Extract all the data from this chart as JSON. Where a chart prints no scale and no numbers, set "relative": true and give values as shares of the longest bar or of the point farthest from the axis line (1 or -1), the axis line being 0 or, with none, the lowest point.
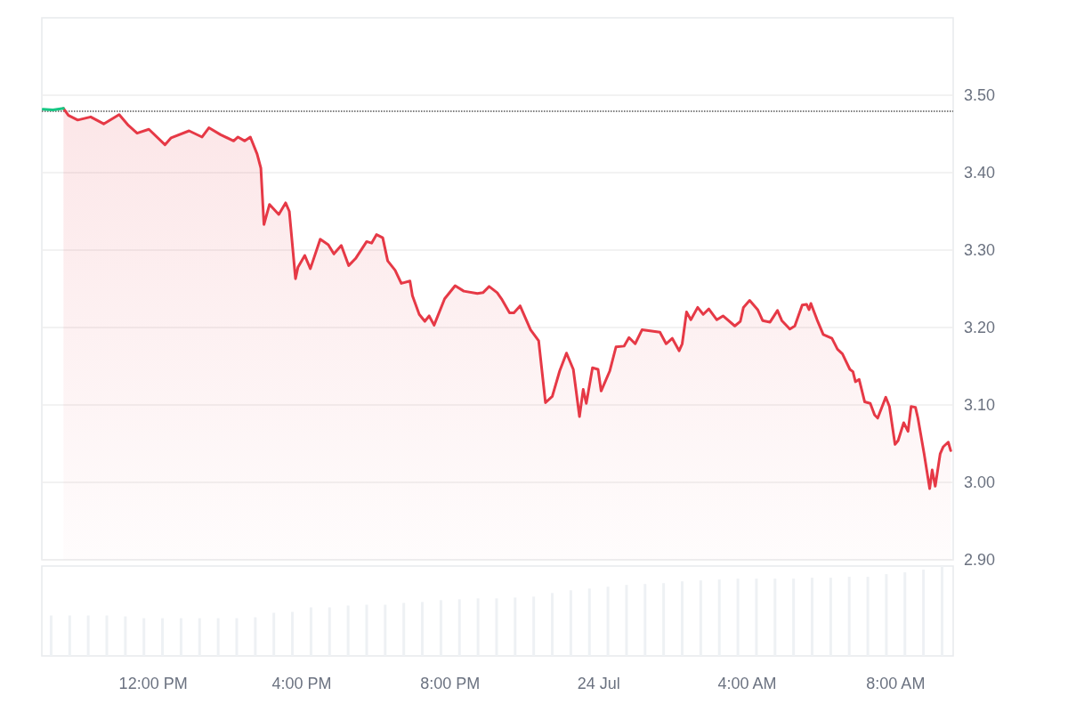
{
  "chart_data": [
    {
      "type": "line",
      "xlim": [
        "--07-23T09:00",
        "--07-24T09:33"
      ],
      "ylim": [
        2.9,
        3.6
      ],
      "yticks": [
        {
          "value": 2.9,
          "label": "2.90"
        },
        {
          "value": 3.0,
          "label": "3.00"
        },
        {
          "value": 3.1,
          "label": "3.10"
        },
        {
          "value": 3.2,
          "label": "3.20"
        },
        {
          "value": 3.3,
          "label": "3.30"
        },
        {
          "value": 3.4,
          "label": "3.40"
        },
        {
          "value": 3.5,
          "label": "3.50"
        }
      ],
      "tick_labels": "y",
      "grid": "y",
      "marker": "none",
      "line_style": "solid",
      "ref_lines": [
        {
          "axis": "y",
          "value": 3.48,
          "color": "#555555",
          "line_style": "dotted"
        }
      ],
      "series": [
        {
          "type": "area",
          "color": "#e63946",
          "x": [
            "--07-23T09:35",
            "--07-23T09:43",
            "--07-23T09:58",
            "--07-23T10:19",
            "--07-23T10:40",
            "--07-23T11:05",
            "--07-23T11:20",
            "--07-23T11:34",
            "--07-23T11:53",
            "--07-23T12:19",
            "--07-23T12:29",
            "--07-23T12:58",
            "--07-23T13:19",
            "--07-23T13:30",
            "--07-23T13:49",
            "--07-23T14:10",
            "--07-23T14:17",
            "--07-23T14:28",
            "--07-23T14:37",
            "--07-23T14:48",
            "--07-23T14:54",
            "--07-23T14:59",
            "--07-23T15:08",
            "--07-23T15:23",
            "--07-23T15:34",
            "--07-23T15:40",
            "--07-23T15:50",
            "--07-23T15:54",
            "--07-23T16:05",
            "--07-23T16:14",
            "--07-23T16:30",
            "--07-23T16:43",
            "--07-23T16:52",
            "--07-23T17:04",
            "--07-23T17:16",
            "--07-23T17:27",
            "--07-23T17:45",
            "--07-23T17:53",
            "--07-23T18:01",
            "--07-23T18:11",
            "--07-23T18:19",
            "--07-23T18:31",
            "--07-23T18:41",
            "--07-23T18:55",
            "--07-23T18:59",
            "--07-23T19:10",
            "--07-23T19:19",
            "--07-23T19:26",
            "--07-23T19:34",
            "--07-23T19:51",
            "--07-23T20:08",
            "--07-23T20:22",
            "--07-23T20:44",
            "--07-23T20:53",
            "--07-23T21:03",
            "--07-23T21:16",
            "--07-23T21:23",
            "--07-23T21:36",
            "--07-23T21:43",
            "--07-23T21:53",
            "--07-23T22:10",
            "--07-23T22:23",
            "--07-23T22:34",
            "--07-23T22:45",
            "--07-23T22:57",
            "--07-23T23:08",
            "--07-23T23:19",
            "--07-23T23:29",
            "--07-23T23:35",
            "--07-23T23:40",
            "--07-23T23:50",
            "--07-23T23:59",
            "--07-24T00:04",
            "--07-24T00:18",
            "--07-24T00:28",
            "--07-24T00:41",
            "--07-24T00:49",
            "--07-24T00:59",
            "--07-24T01:10",
            "--07-24T01:39",
            "--07-24T01:49",
            "--07-24T01:59",
            "--07-24T02:10",
            "--07-24T02:15",
            "--07-24T02:22",
            "--07-24T02:29",
            "--07-24T02:40",
            "--07-24T02:49",
            "--07-24T02:58",
            "--07-24T03:11",
            "--07-24T03:21",
            "--07-24T03:40",
            "--07-24T03:49",
            "--07-24T03:54",
            "--07-24T04:04",
            "--07-24T04:17",
            "--07-24T04:25",
            "--07-24T04:37",
            "--07-24T04:49",
            "--07-24T04:56",
            "--07-24T05:09",
            "--07-24T05:17",
            "--07-24T05:29",
            "--07-24T05:36",
            "--07-24T05:40",
            "--07-24T05:43",
            "--07-24T05:53",
            "--07-24T06:03",
            "--07-24T06:17",
            "--07-24T06:26",
            "--07-24T06:34",
            "--07-24T06:46",
            "--07-24T06:51",
            "--07-24T06:55",
            "--07-24T07:01",
            "--07-24T07:10",
            "--07-24T07:19",
            "--07-24T07:26",
            "--07-24T07:31",
            "--07-24T07:44",
            "--07-24T07:50",
            "--07-24T07:59",
            "--07-24T08:04",
            "--07-24T08:13",
            "--07-24T08:20",
            "--07-24T08:25",
            "--07-24T08:32",
            "--07-24T08:36",
            "--07-24T08:46",
            "--07-24T08:55",
            "--07-24T08:59",
            "--07-24T09:04",
            "--07-24T09:12",
            "--07-24T09:17",
            "--07-24T09:25",
            "--07-24T09:29"
          ],
          "values": [
            3.483,
            3.474,
            3.468,
            3.472,
            3.463,
            3.475,
            3.461,
            3.451,
            3.456,
            3.436,
            3.445,
            3.454,
            3.446,
            3.458,
            3.449,
            3.441,
            3.446,
            3.441,
            3.446,
            3.424,
            3.406,
            3.333,
            3.359,
            3.346,
            3.361,
            3.35,
            3.263,
            3.278,
            3.293,
            3.276,
            3.314,
            3.307,
            3.295,
            3.306,
            3.28,
            3.289,
            3.311,
            3.309,
            3.32,
            3.316,
            3.286,
            3.274,
            3.257,
            3.26,
            3.241,
            3.217,
            3.208,
            3.215,
            3.203,
            3.237,
            3.254,
            3.247,
            3.244,
            3.245,
            3.253,
            3.245,
            3.237,
            3.219,
            3.219,
            3.228,
            3.197,
            3.183,
            3.103,
            3.111,
            3.144,
            3.167,
            3.146,
            3.085,
            3.12,
            3.102,
            3.148,
            3.146,
            3.118,
            3.144,
            3.175,
            3.176,
            3.187,
            3.179,
            3.197,
            3.194,
            3.179,
            3.186,
            3.17,
            3.179,
            3.22,
            3.21,
            3.226,
            3.217,
            3.224,
            3.21,
            3.215,
            3.202,
            3.208,
            3.226,
            3.235,
            3.223,
            3.209,
            3.207,
            3.222,
            3.209,
            3.198,
            3.202,
            3.229,
            3.23,
            3.223,
            3.231,
            3.21,
            3.191,
            3.186,
            3.172,
            3.166,
            3.146,
            3.143,
            3.13,
            3.133,
            3.104,
            3.102,
            3.087,
            3.083,
            3.11,
            3.098,
            3.049,
            3.054,
            3.077,
            3.066,
            3.098,
            3.097,
            3.083,
            3.037,
            2.992,
            3.016,
            2.995,
            3.037,
            3.046,
            3.052,
            3.041
          ]
        },
        {
          "color": "#16c784",
          "x": [
            "--07-23T09:02",
            "--07-23T09:18",
            "--07-23T09:35"
          ],
          "values": [
            3.482,
            3.481,
            3.483
          ]
        }
      ]
    },
    {
      "type": "bar",
      "relative": true,
      "color": "#eef1f4",
      "tick_labels": "x",
      "xlim": [
        "--07-23T09:00",
        "--07-24T09:33"
      ],
      "xticks": [
        {
          "value": "--07-23T12:00",
          "label": "12:00 PM"
        },
        {
          "value": "--07-23T16:00",
          "label": "4:00 PM"
        },
        {
          "value": "--07-23T20:00",
          "label": "8:00 PM"
        },
        {
          "value": "--07-24T00:00",
          "label": "24 Jul"
        },
        {
          "value": "--07-24T04:00",
          "label": "4:00 AM"
        },
        {
          "value": "--07-24T08:00",
          "label": "8:00 AM"
        }
      ],
      "x": [
        "--07-23T09:15",
        "--07-23T09:45",
        "--07-23T10:15",
        "--07-23T10:45",
        "--07-23T11:15",
        "--07-23T11:45",
        "--07-23T12:15",
        "--07-23T12:45",
        "--07-23T13:15",
        "--07-23T13:45",
        "--07-23T14:15",
        "--07-23T14:45",
        "--07-23T15:15",
        "--07-23T15:45",
        "--07-23T16:15",
        "--07-23T16:45",
        "--07-23T17:15",
        "--07-23T17:45",
        "--07-23T18:15",
        "--07-23T18:45",
        "--07-23T19:15",
        "--07-23T19:45",
        "--07-23T20:15",
        "--07-23T20:45",
        "--07-23T21:15",
        "--07-23T21:45",
        "--07-23T22:15",
        "--07-23T22:45",
        "--07-23T23:15",
        "--07-23T23:45",
        "--07-24T00:15",
        "--07-24T00:45",
        "--07-24T01:15",
        "--07-24T01:45",
        "--07-24T02:15",
        "--07-24T02:45",
        "--07-24T03:15",
        "--07-24T03:45",
        "--07-24T04:15",
        "--07-24T04:45",
        "--07-24T05:15",
        "--07-24T05:45",
        "--07-24T06:15",
        "--07-24T06:45",
        "--07-24T07:15",
        "--07-24T07:45",
        "--07-24T08:15",
        "--07-24T08:45",
        "--07-24T09:15"
      ],
      "values": [
        0.45,
        0.45,
        0.45,
        0.45,
        0.44,
        0.42,
        0.42,
        0.42,
        0.42,
        0.42,
        0.42,
        0.43,
        0.48,
        0.49,
        0.54,
        0.54,
        0.56,
        0.57,
        0.57,
        0.59,
        0.6,
        0.62,
        0.63,
        0.64,
        0.64,
        0.65,
        0.66,
        0.7,
        0.73,
        0.75,
        0.77,
        0.79,
        0.8,
        0.81,
        0.83,
        0.84,
        0.85,
        0.86,
        0.86,
        0.86,
        0.86,
        0.87,
        0.87,
        0.88,
        0.88,
        0.91,
        0.93,
        0.96,
        1
      ]
    }
  ]
}
